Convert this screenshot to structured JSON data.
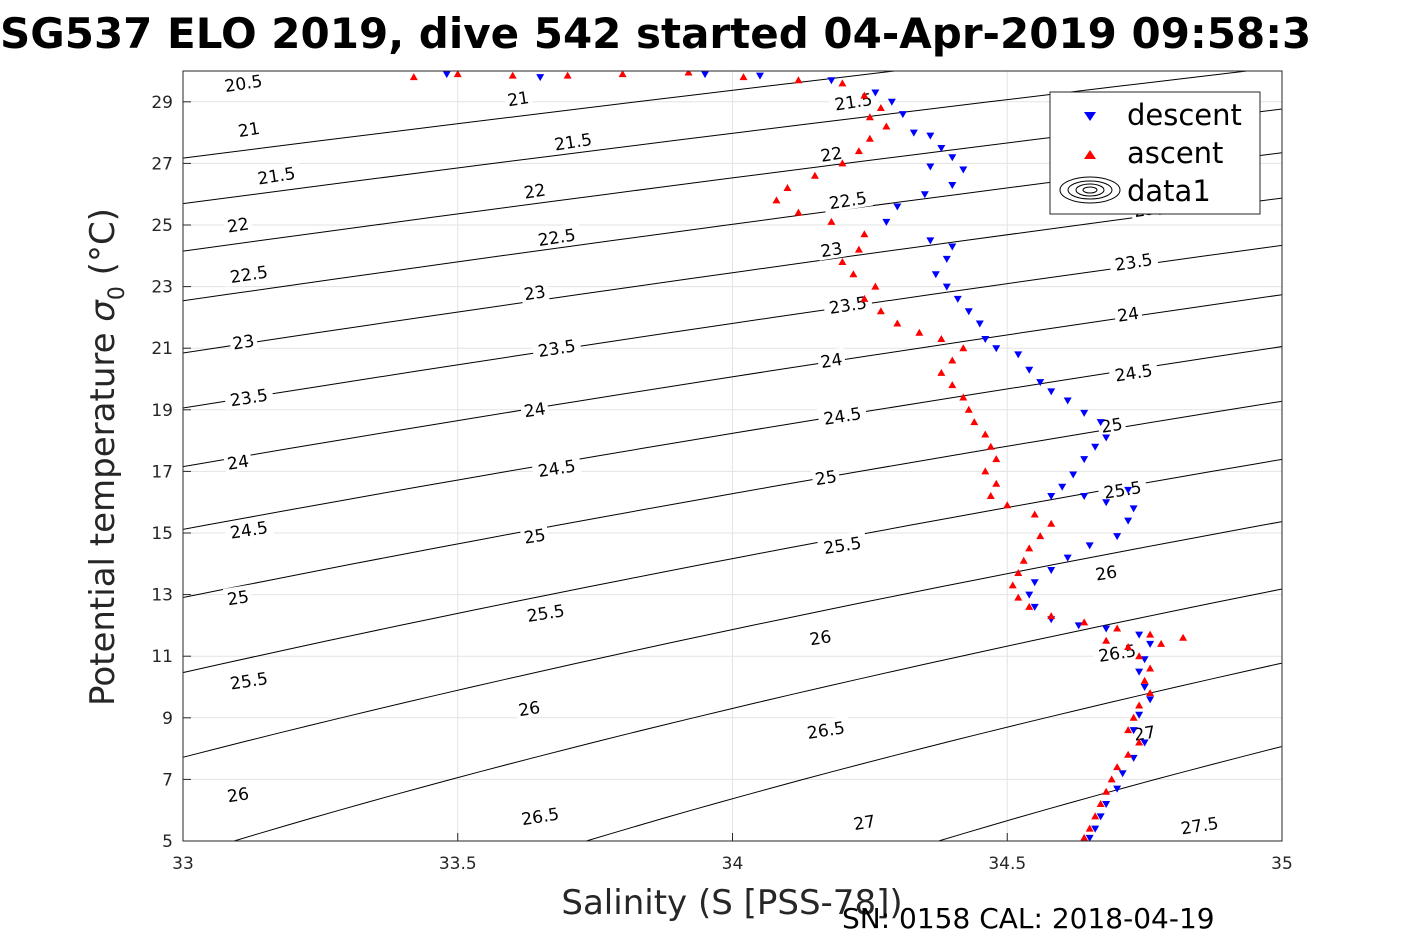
{
  "chart_data": {
    "type": "scatter",
    "title": "SG537 ELO 2019, dive 542 started 04-Apr-2019 09:58:3",
    "xlabel": "Salinity (S [PSS-78])",
    "ylabel": "Potential temperature σ₀ (°C)",
    "ylabel_main": "Potential temperature ",
    "ylabel_sigma": "σ",
    "ylabel_sub": "0",
    "ylabel_unit": " (°C)",
    "footer": "SN: 0158  CAL: 2018-04-19",
    "xlim": [
      33,
      35
    ],
    "ylim": [
      5,
      30
    ],
    "xticks": [
      33,
      33.5,
      34,
      34.5,
      35
    ],
    "xtick_labels": [
      "33",
      "33.5",
      "34",
      "34.5",
      "35"
    ],
    "yticks": [
      5,
      7,
      9,
      11,
      13,
      15,
      17,
      19,
      21,
      23,
      25,
      27,
      29
    ],
    "ytick_labels": [
      "5",
      "7",
      "9",
      "11",
      "13",
      "15",
      "17",
      "19",
      "21",
      "23",
      "25",
      "27",
      "29"
    ],
    "grid": true,
    "legend": {
      "placement": "top-right",
      "entries": [
        "descent",
        "ascent",
        "data1"
      ]
    },
    "contours": {
      "name": "data1",
      "levels": [
        20.5,
        21,
        21.5,
        22,
        22.5,
        23,
        23.5,
        24,
        24.5,
        25,
        25.5,
        26,
        26.5,
        27,
        27.5
      ],
      "labels": [
        {
          "text": "20.5",
          "s": 33.11,
          "t": 29.6
        },
        {
          "text": "21",
          "s": 33.12,
          "t": 28.1
        },
        {
          "text": "21",
          "s": 33.61,
          "t": 29.1
        },
        {
          "text": "21.5",
          "s": 33.17,
          "t": 26.6
        },
        {
          "text": "21.5",
          "s": 33.71,
          "t": 27.7
        },
        {
          "text": "21.5",
          "s": 34.22,
          "t": 29.0
        },
        {
          "text": "22",
          "s": 33.1,
          "t": 25.0
        },
        {
          "text": "22",
          "s": 33.64,
          "t": 26.1
        },
        {
          "text": "22",
          "s": 34.18,
          "t": 27.3
        },
        {
          "text": "22.5",
          "s": 33.12,
          "t": 23.4
        },
        {
          "text": "22.5",
          "s": 33.68,
          "t": 24.6
        },
        {
          "text": "22.5",
          "s": 34.21,
          "t": 25.8
        },
        {
          "text": "23",
          "s": 33.11,
          "t": 21.2
        },
        {
          "text": "23",
          "s": 33.64,
          "t": 22.8
        },
        {
          "text": "23",
          "s": 34.18,
          "t": 24.2
        },
        {
          "text": "23",
          "s": 34.75,
          "t": 25.5
        },
        {
          "text": "23.5",
          "s": 33.12,
          "t": 19.4
        },
        {
          "text": "23.5",
          "s": 33.68,
          "t": 21.0
        },
        {
          "text": "23.5",
          "s": 34.21,
          "t": 22.4
        },
        {
          "text": "23.5",
          "s": 34.73,
          "t": 23.8
        },
        {
          "text": "24",
          "s": 33.1,
          "t": 17.3
        },
        {
          "text": "24",
          "s": 33.64,
          "t": 19.0
        },
        {
          "text": "24",
          "s": 34.18,
          "t": 20.6
        },
        {
          "text": "24",
          "s": 34.72,
          "t": 22.1
        },
        {
          "text": "24.5",
          "s": 33.12,
          "t": 15.1
        },
        {
          "text": "24.5",
          "s": 33.68,
          "t": 17.1
        },
        {
          "text": "24.5",
          "s": 34.2,
          "t": 18.8
        },
        {
          "text": "24.5",
          "s": 34.73,
          "t": 20.2
        },
        {
          "text": "25",
          "s": 33.1,
          "t": 12.9
        },
        {
          "text": "25",
          "s": 33.64,
          "t": 14.9
        },
        {
          "text": "25",
          "s": 34.17,
          "t": 16.8
        },
        {
          "text": "25",
          "s": 34.69,
          "t": 18.5
        },
        {
          "text": "25.5",
          "s": 33.12,
          "t": 10.2
        },
        {
          "text": "25.5",
          "s": 33.66,
          "t": 12.4
        },
        {
          "text": "25.5",
          "s": 34.2,
          "t": 14.6
        },
        {
          "text": "25.5",
          "s": 34.71,
          "t": 16.4
        },
        {
          "text": "26",
          "s": 33.1,
          "t": 6.5
        },
        {
          "text": "26",
          "s": 33.63,
          "t": 9.3
        },
        {
          "text": "26",
          "s": 34.16,
          "t": 11.6
        },
        {
          "text": "26",
          "s": 34.68,
          "t": 13.7
        },
        {
          "text": "26.5",
          "s": 33.65,
          "t": 5.8
        },
        {
          "text": "26.5",
          "s": 34.17,
          "t": 8.6
        },
        {
          "text": "26.5",
          "s": 34.7,
          "t": 11.1
        },
        {
          "text": "27",
          "s": 34.24,
          "t": 5.6
        },
        {
          "text": "27",
          "s": 34.75,
          "t": 8.5
        },
        {
          "text": "27.5",
          "s": 34.85,
          "t": 5.5
        }
      ]
    },
    "series": [
      {
        "name": "descent",
        "color": "#0000ff",
        "marker": "triangle-down",
        "points": [
          [
            33.48,
            29.9
          ],
          [
            33.65,
            29.8
          ],
          [
            33.95,
            29.9
          ],
          [
            34.05,
            29.85
          ],
          [
            34.18,
            29.7
          ],
          [
            34.26,
            29.3
          ],
          [
            34.29,
            29.0
          ],
          [
            34.31,
            28.6
          ],
          [
            34.33,
            28.0
          ],
          [
            34.36,
            27.9
          ],
          [
            34.38,
            27.5
          ],
          [
            34.4,
            27.2
          ],
          [
            34.36,
            26.9
          ],
          [
            34.42,
            26.8
          ],
          [
            34.4,
            26.3
          ],
          [
            34.35,
            26.0
          ],
          [
            34.3,
            25.6
          ],
          [
            34.28,
            25.1
          ],
          [
            34.36,
            24.5
          ],
          [
            34.4,
            24.3
          ],
          [
            34.39,
            23.9
          ],
          [
            34.37,
            23.4
          ],
          [
            34.39,
            23.0
          ],
          [
            34.41,
            22.6
          ],
          [
            34.43,
            22.2
          ],
          [
            34.45,
            21.8
          ],
          [
            34.46,
            21.3
          ],
          [
            34.48,
            21.0
          ],
          [
            34.52,
            20.8
          ],
          [
            34.54,
            20.3
          ],
          [
            34.56,
            19.9
          ],
          [
            34.58,
            19.6
          ],
          [
            34.61,
            19.3
          ],
          [
            34.64,
            18.9
          ],
          [
            34.67,
            18.6
          ],
          [
            34.68,
            18.1
          ],
          [
            34.66,
            17.8
          ],
          [
            34.64,
            17.4
          ],
          [
            34.62,
            16.9
          ],
          [
            34.6,
            16.5
          ],
          [
            34.58,
            16.2
          ],
          [
            34.64,
            16.2
          ],
          [
            34.68,
            16.0
          ],
          [
            34.72,
            16.4
          ],
          [
            34.73,
            15.8
          ],
          [
            34.72,
            15.4
          ],
          [
            34.7,
            14.9
          ],
          [
            34.65,
            14.6
          ],
          [
            34.61,
            14.2
          ],
          [
            34.58,
            13.8
          ],
          [
            34.55,
            13.4
          ],
          [
            34.54,
            13.0
          ],
          [
            34.55,
            12.6
          ],
          [
            34.58,
            12.2
          ],
          [
            34.63,
            12.0
          ],
          [
            34.68,
            11.9
          ],
          [
            34.74,
            11.7
          ],
          [
            34.76,
            11.4
          ],
          [
            34.75,
            10.9
          ],
          [
            34.74,
            10.5
          ],
          [
            34.75,
            10.0
          ],
          [
            34.76,
            9.6
          ],
          [
            34.74,
            9.1
          ],
          [
            34.73,
            8.6
          ],
          [
            34.75,
            8.2
          ],
          [
            34.73,
            7.7
          ],
          [
            34.71,
            7.2
          ],
          [
            34.7,
            6.7
          ],
          [
            34.68,
            6.2
          ],
          [
            34.67,
            5.8
          ],
          [
            34.66,
            5.4
          ],
          [
            34.65,
            5.1
          ]
        ]
      },
      {
        "name": "ascent",
        "color": "#ff0000",
        "marker": "triangle-up",
        "points": [
          [
            33.42,
            29.8
          ],
          [
            33.5,
            29.9
          ],
          [
            33.6,
            29.85
          ],
          [
            33.7,
            29.85
          ],
          [
            33.8,
            29.9
          ],
          [
            33.92,
            29.95
          ],
          [
            34.02,
            29.8
          ],
          [
            34.12,
            29.7
          ],
          [
            34.2,
            29.6
          ],
          [
            34.24,
            29.2
          ],
          [
            34.27,
            28.8
          ],
          [
            34.25,
            28.5
          ],
          [
            34.28,
            28.2
          ],
          [
            34.25,
            27.8
          ],
          [
            34.23,
            27.4
          ],
          [
            34.2,
            27.0
          ],
          [
            34.15,
            26.6
          ],
          [
            34.1,
            26.2
          ],
          [
            34.08,
            25.8
          ],
          [
            34.12,
            25.4
          ],
          [
            34.18,
            25.1
          ],
          [
            34.24,
            24.7
          ],
          [
            34.23,
            24.2
          ],
          [
            34.2,
            23.8
          ],
          [
            34.22,
            23.4
          ],
          [
            34.26,
            23.0
          ],
          [
            34.24,
            22.6
          ],
          [
            34.27,
            22.2
          ],
          [
            34.3,
            21.8
          ],
          [
            34.34,
            21.5
          ],
          [
            34.38,
            21.3
          ],
          [
            34.42,
            21.0
          ],
          [
            34.4,
            20.6
          ],
          [
            34.38,
            20.2
          ],
          [
            34.4,
            19.8
          ],
          [
            34.42,
            19.4
          ],
          [
            34.43,
            19.0
          ],
          [
            34.44,
            18.6
          ],
          [
            34.46,
            18.2
          ],
          [
            34.47,
            17.8
          ],
          [
            34.48,
            17.4
          ],
          [
            34.46,
            17.0
          ],
          [
            34.48,
            16.6
          ],
          [
            34.47,
            16.2
          ],
          [
            34.5,
            15.9
          ],
          [
            34.55,
            15.6
          ],
          [
            34.58,
            15.3
          ],
          [
            34.56,
            14.9
          ],
          [
            34.54,
            14.5
          ],
          [
            34.53,
            14.1
          ],
          [
            34.52,
            13.7
          ],
          [
            34.51,
            13.3
          ],
          [
            34.52,
            12.9
          ],
          [
            34.54,
            12.6
          ],
          [
            34.58,
            12.3
          ],
          [
            34.64,
            12.1
          ],
          [
            34.7,
            11.9
          ],
          [
            34.76,
            11.7
          ],
          [
            34.82,
            11.6
          ],
          [
            34.78,
            11.4
          ],
          [
            34.72,
            11.3
          ],
          [
            34.68,
            11.5
          ],
          [
            34.74,
            11.0
          ],
          [
            34.76,
            10.6
          ],
          [
            34.75,
            10.2
          ],
          [
            34.76,
            9.8
          ],
          [
            34.74,
            9.4
          ],
          [
            34.73,
            9.0
          ],
          [
            34.72,
            8.6
          ],
          [
            34.74,
            8.2
          ],
          [
            34.72,
            7.8
          ],
          [
            34.7,
            7.4
          ],
          [
            34.69,
            7.0
          ],
          [
            34.68,
            6.6
          ],
          [
            34.67,
            6.2
          ],
          [
            34.66,
            5.8
          ],
          [
            34.65,
            5.4
          ],
          [
            34.64,
            5.1
          ]
        ]
      }
    ]
  }
}
